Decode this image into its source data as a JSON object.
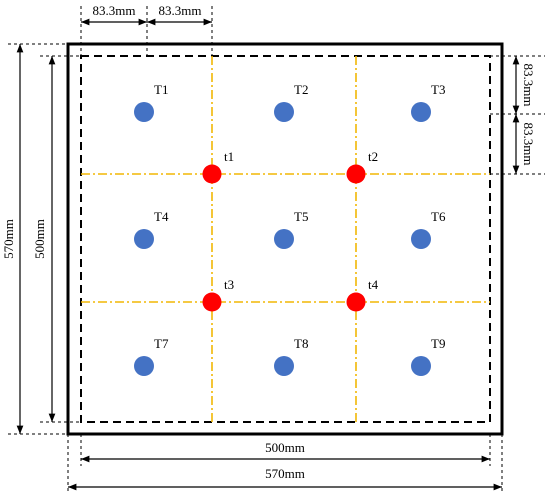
{
  "dimensions": {
    "top": [
      "83.3mm",
      "83.3mm"
    ],
    "right": [
      "83.3mm",
      "83.3mm"
    ],
    "left_outer": "570mm",
    "left_inner": "500mm",
    "bottom_inner": "500mm",
    "bottom_outer": "570mm"
  },
  "sensors": [
    "T1",
    "T2",
    "T3",
    "T4",
    "T5",
    "T6",
    "T7",
    "T8",
    "T9"
  ],
  "points": [
    "t1",
    "t2",
    "t3",
    "t4"
  ]
}
